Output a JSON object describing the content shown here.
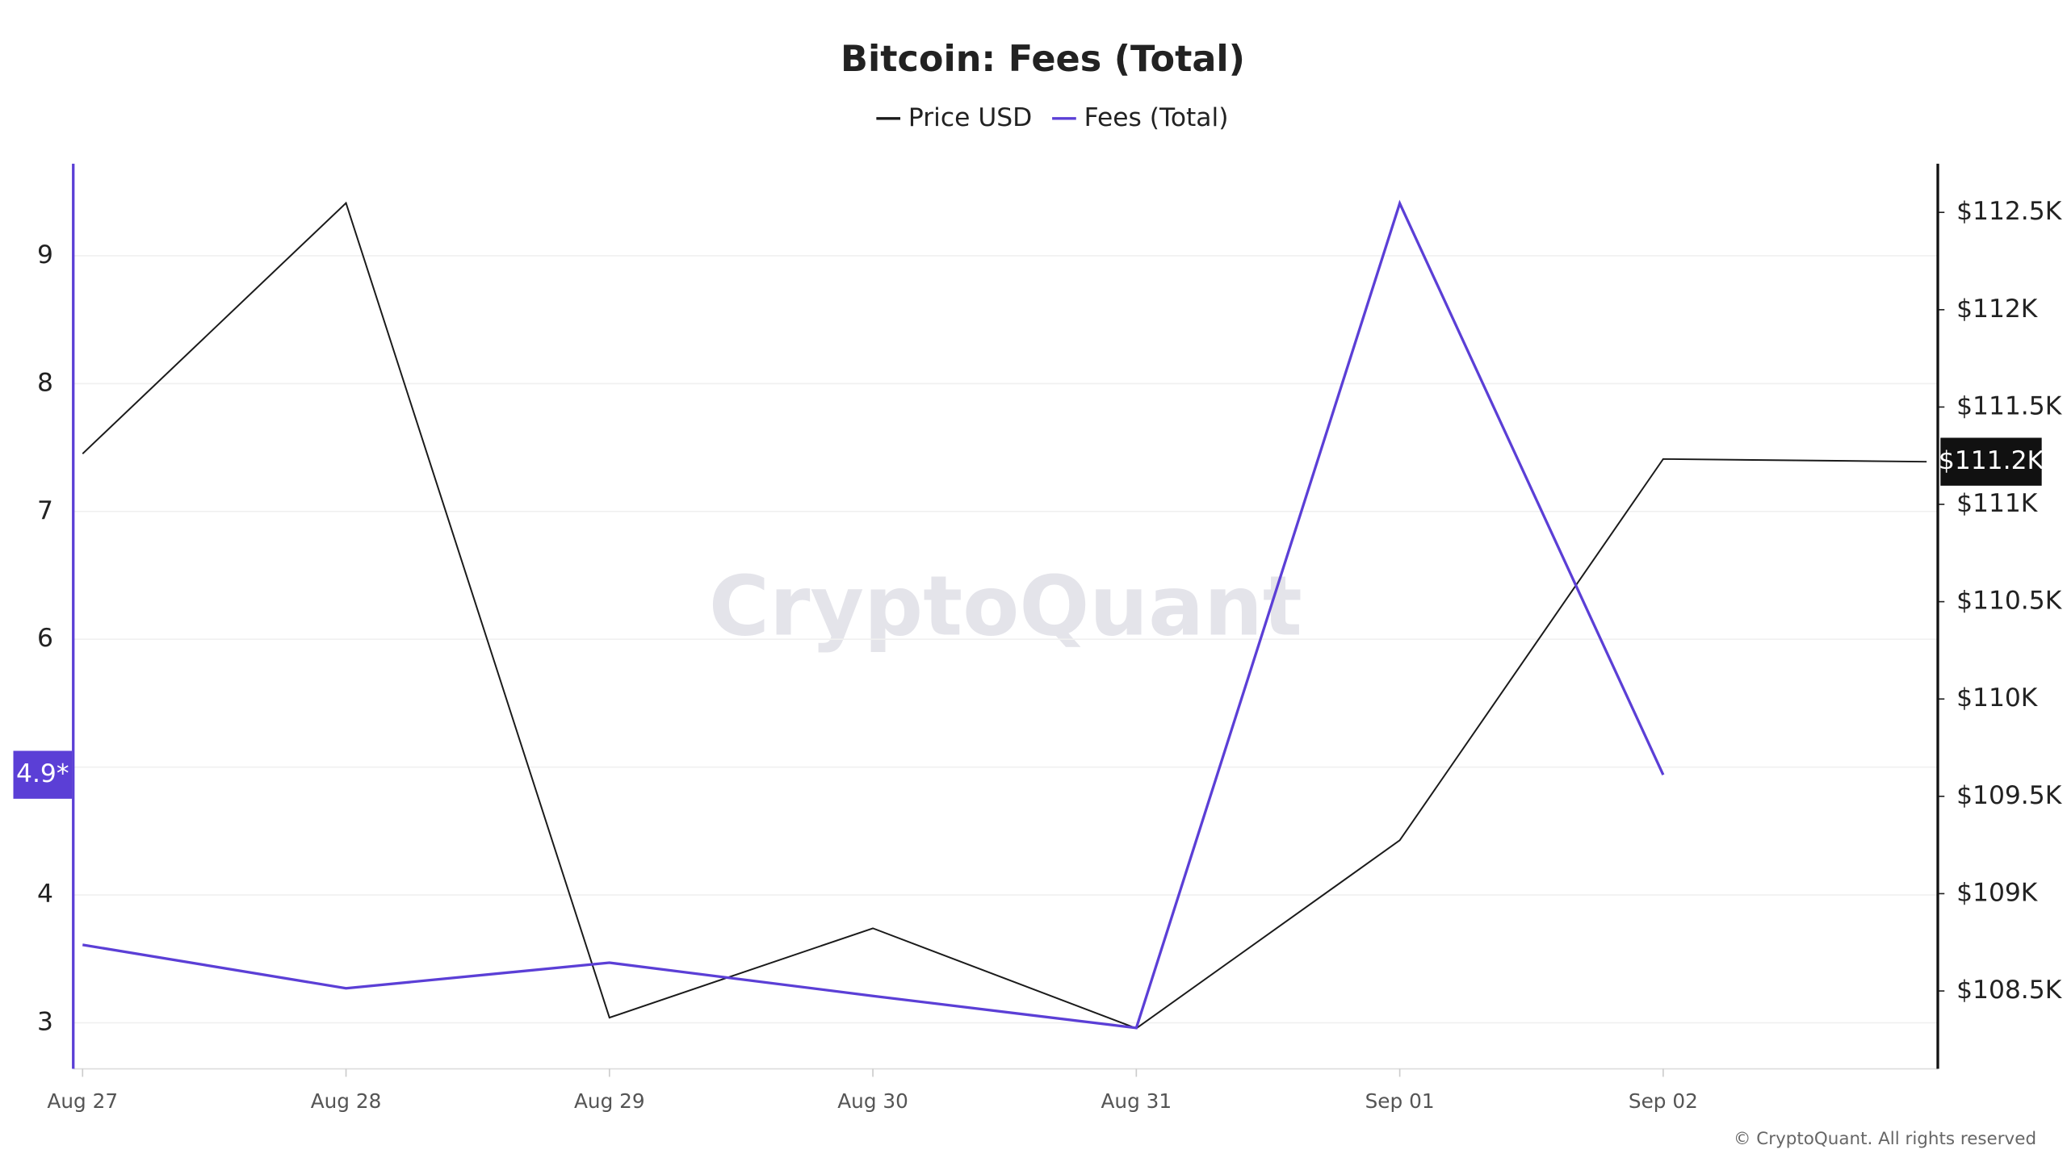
{
  "chart_data": {
    "type": "line",
    "title": "Bitcoin: Fees (Total)",
    "watermark": "CryptoQuant",
    "footer": "© CryptoQuant. All rights reserved",
    "categories": [
      "Aug 27",
      "Aug 28",
      "Aug 29",
      "Aug 30",
      "Aug 31",
      "Sep 01",
      "Sep 02",
      null
    ],
    "series": [
      {
        "name": "Price USD",
        "color": "#1a1a1a",
        "axis": "y2",
        "values": [
          111260,
          112548,
          108363,
          108822,
          108308,
          109274,
          111233,
          111219
        ],
        "value_labels": [
          null,
          null,
          null,
          null,
          null,
          null,
          null,
          "$111.2K"
        ]
      },
      {
        "name": "Fees (Total)",
        "color": "#5b3fd6",
        "values": [
          3.61,
          3.27,
          3.47,
          3.21,
          2.96,
          9.41,
          4.94,
          null
        ],
        "value_labels": [
          null,
          null,
          null,
          null,
          null,
          null,
          "4.9*",
          null
        ]
      }
    ],
    "ylim": [
      2.64,
      9.72
    ],
    "yticks": [
      3,
      4,
      5,
      6,
      7,
      8,
      9
    ],
    "y2lim": [
      108100,
      112750
    ],
    "y2ticks": [
      {
        "value": 108500,
        "label": "$108.5K"
      },
      {
        "value": 109000,
        "label": "$109K"
      },
      {
        "value": 109500,
        "label": "$109.5K"
      },
      {
        "value": 110000,
        "label": "$110K"
      },
      {
        "value": 110500,
        "label": "$110.5K"
      },
      {
        "value": 111000,
        "label": "$111K"
      },
      {
        "value": 111500,
        "label": "$111.5K"
      },
      {
        "value": 112000,
        "label": "$112K"
      },
      {
        "value": 112500,
        "label": "$112.5K"
      }
    ],
    "grid": true,
    "legend": "top"
  }
}
